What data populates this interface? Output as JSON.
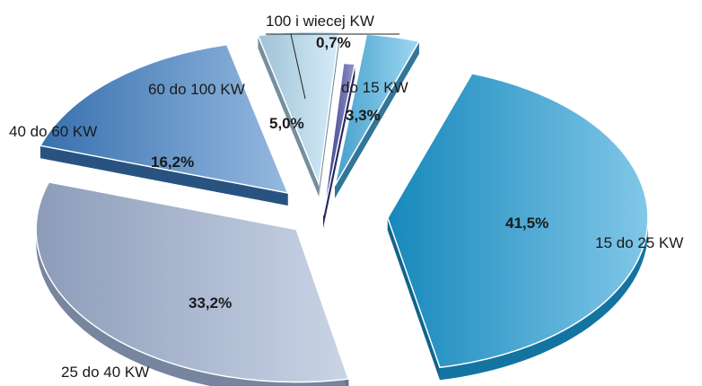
{
  "chart_data": {
    "type": "pie",
    "title": "",
    "legend": "none",
    "slices": [
      {
        "label": "do 15 KW",
        "value": 3.3,
        "value_label": "3,3%",
        "color": "#4fb6e8"
      },
      {
        "label": "15 do 25 KW",
        "value": 41.5,
        "value_label": "41,5%",
        "color": "#1a9ad6"
      },
      {
        "label": "25 do 40 KW",
        "value": 33.2,
        "value_label": "33,2%",
        "color": "#9fb1d2"
      },
      {
        "label": "40 do 60 KW",
        "value": 16.2,
        "value_label": "16,2%",
        "color": "#3e7fc6"
      },
      {
        "label": "60 do 100 KW",
        "value": 5.0,
        "value_label": "5,0%",
        "color": "#b4dcf3"
      },
      {
        "label": "100 i wiecej KW",
        "value": 0.7,
        "value_label": "0,7%",
        "color": "#3b3f99"
      }
    ]
  }
}
